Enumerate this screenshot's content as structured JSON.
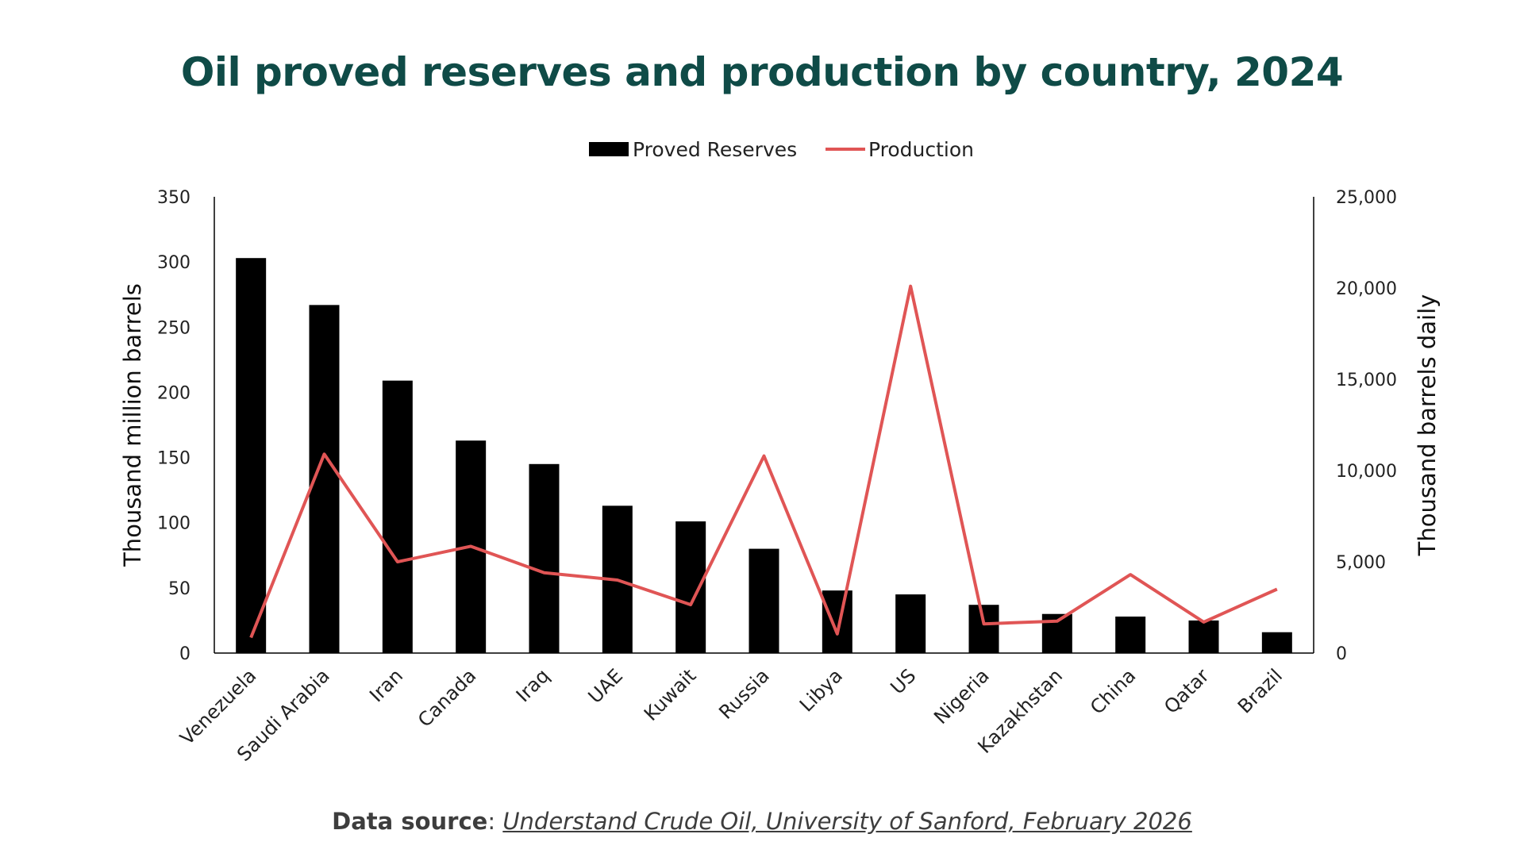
{
  "colors": {
    "title": "#0f4b47",
    "bar": "#000000",
    "line": "#e05555",
    "axis": "#000000",
    "source_text": "#3d3d3d"
  },
  "chart_data": {
    "type": "bar",
    "title": "Oil proved reserves and production by country, 2024",
    "categories": [
      "Venezuela",
      "Saudi Arabia",
      "Iran",
      "Canada",
      "Iraq",
      "UAE",
      "Kuwait",
      "Russia",
      "Libya",
      "US",
      "Nigeria",
      "Kazakhstan",
      "China",
      "Qatar",
      "Brazil"
    ],
    "series": [
      {
        "name": "Proved Reserves",
        "type": "bar",
        "axis": "left",
        "values": [
          303,
          267,
          209,
          163,
          145,
          113,
          101,
          80,
          48,
          45,
          37,
          30,
          28,
          25,
          16
        ]
      },
      {
        "name": "Production",
        "type": "line",
        "axis": "right",
        "values": [
          850,
          10900,
          5000,
          5850,
          4400,
          4000,
          2650,
          10800,
          1050,
          20100,
          1600,
          1750,
          4300,
          1700,
          3500
        ]
      }
    ],
    "y_left": {
      "label": "Thousand million barrels",
      "ylim": [
        0,
        350
      ],
      "ticks": [
        "0",
        "50",
        "100",
        "150",
        "200",
        "250",
        "300",
        "350"
      ]
    },
    "y_right": {
      "label": "Thousand barrels daily",
      "ylim": [
        0,
        25000
      ],
      "ticks": [
        "0",
        "5,000",
        "10,000",
        "15,000",
        "20,000",
        "25,000"
      ]
    },
    "legend": {
      "placement": "top-center",
      "items": [
        "Proved Reserves",
        "Production"
      ]
    },
    "grid": false
  },
  "footer": {
    "source_label": "Data source",
    "source_separator": ": ",
    "source_link": "Understand Crude Oil, University of Sanford, February 2026"
  }
}
